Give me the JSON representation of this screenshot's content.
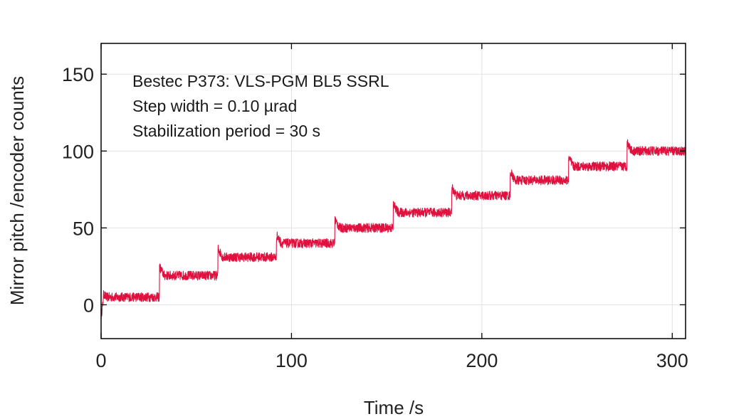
{
  "chart_data": {
    "type": "line",
    "title": "",
    "xlabel": "Time /s",
    "ylabel": "Mirror pitch /encoder counts",
    "xlim": [
      0,
      307
    ],
    "ylim": [
      -22,
      170
    ],
    "xticks": [
      0,
      100,
      200,
      300
    ],
    "yticks": [
      0,
      50,
      100,
      150
    ],
    "xtick_labels": [
      "0",
      "100",
      "200",
      "300"
    ],
    "ytick_labels": [
      "0",
      "50",
      "100",
      "150"
    ],
    "grid": true,
    "annotations": [
      "Bestec P373: VLS-PGM BL5 SSRL",
      "Step width = 0.10 µrad",
      "Stabilization period = 30 s"
    ],
    "series": [
      {
        "name": "Mirror pitch",
        "color": "#e0113f",
        "noise_amplitude": 3,
        "step_period_s": 30.7,
        "x": [
          0,
          30.5,
          30.7,
          61.2,
          61.4,
          91.9,
          92.1,
          122.6,
          122.8,
          153.3,
          153.5,
          184.0,
          184.2,
          214.7,
          214.9,
          245.4,
          245.6,
          276.1,
          276.3,
          307
        ],
        "y": [
          5,
          5,
          19,
          19,
          31,
          31,
          40,
          40,
          50,
          50,
          60,
          60,
          71,
          71,
          81,
          81,
          90,
          90,
          100,
          100
        ]
      }
    ]
  }
}
